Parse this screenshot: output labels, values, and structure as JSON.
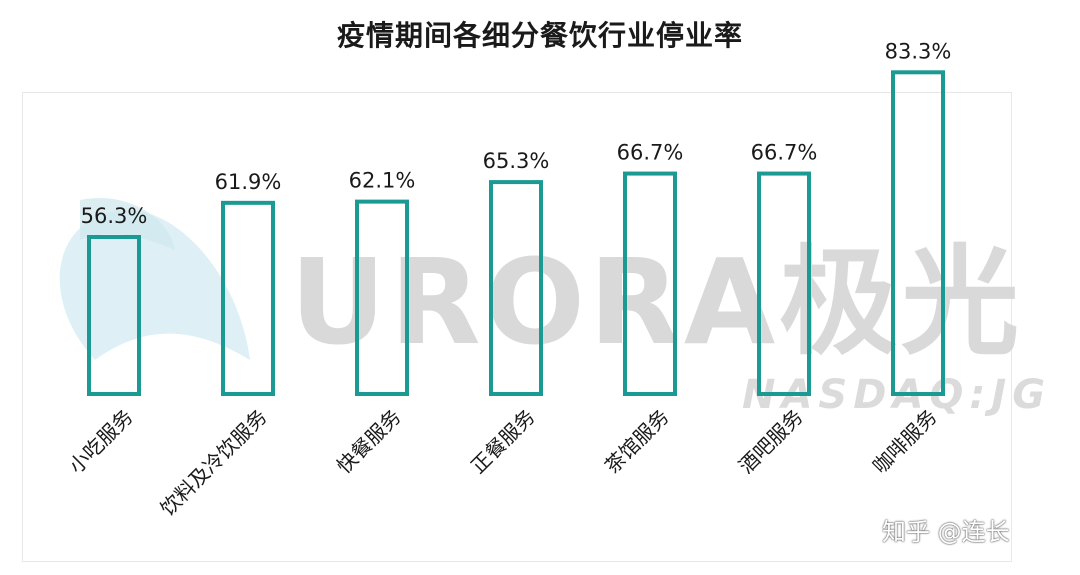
{
  "chart_data": {
    "type": "bar",
    "title": "疫情期间各细分餐饮行业停业率",
    "categories": [
      "小吃服务",
      "饮料及冷饮服务",
      "快餐服务",
      "正餐服务",
      "茶馆服务",
      "酒吧服务",
      "咖啡服务"
    ],
    "values": [
      56.3,
      61.9,
      62.1,
      65.3,
      66.7,
      66.7,
      83.3
    ],
    "value_labels": [
      "56.3%",
      "61.9%",
      "62.1%",
      "65.3%",
      "66.7%",
      "66.7%",
      "83.3%"
    ],
    "xlabel": "",
    "ylabel": "",
    "grid": false,
    "legend": "none",
    "bar_style": "outline",
    "bar_color": "#1a9a93"
  },
  "watermark": {
    "logo_text": "URORA极光",
    "logo_sub": "NASDAQ:JG",
    "credit": "知乎 @连长"
  }
}
